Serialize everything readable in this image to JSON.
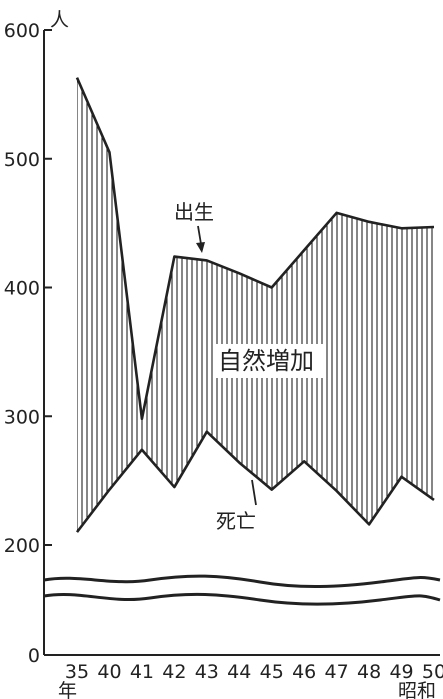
{
  "chart_data": {
    "type": "area",
    "y_unit": "人",
    "x_era_label": "昭和",
    "x_year_suffix": "年",
    "categories": [
      "35",
      "40",
      "41",
      "42",
      "43",
      "44",
      "45",
      "46",
      "47",
      "48",
      "49",
      "50"
    ],
    "series": [
      {
        "name": "出生",
        "values": [
          563,
          505,
          298,
          424,
          421,
          411,
          400,
          429,
          458,
          451,
          446,
          447
        ]
      },
      {
        "name": "死亡",
        "values": [
          210,
          243,
          274,
          245,
          288,
          264,
          243,
          265,
          242,
          216,
          253,
          235
        ]
      }
    ],
    "fill_label": "自然増加",
    "yticks": [
      0,
      200,
      300,
      400,
      500,
      600
    ],
    "axis_break": [
      50,
      200
    ],
    "ylim": [
      0,
      600
    ],
    "fill_pattern": "vertical-hatch",
    "line_color": "#222222"
  }
}
